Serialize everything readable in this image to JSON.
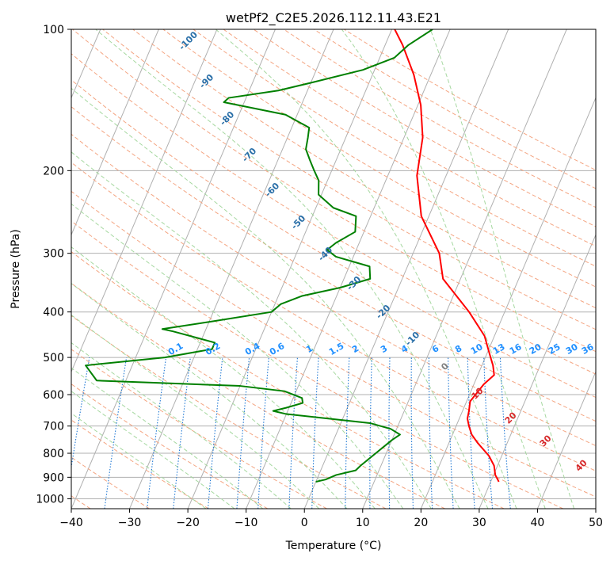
{
  "chart_data": {
    "type": "line",
    "title": "wetPf2_C2E5.2026.112.11.43.E21",
    "xlabel": "Temperature (°C)",
    "ylabel": "Pressure (hPa)",
    "xlim": [
      -40,
      50
    ],
    "ylim": [
      1050,
      100
    ],
    "y_scale": "log",
    "x_ticks": [
      "−40",
      "−30",
      "−20",
      "−10",
      "0",
      "10",
      "20",
      "30",
      "40",
      "50"
    ],
    "x_tick_values": [
      -40,
      -30,
      -20,
      -10,
      0,
      10,
      20,
      30,
      40,
      50
    ],
    "y_ticks": [
      "100",
      "200",
      "300",
      "400",
      "500",
      "600",
      "700",
      "800",
      "900",
      "1000"
    ],
    "y_tick_values": [
      100,
      200,
      300,
      400,
      500,
      600,
      700,
      800,
      900,
      1000
    ],
    "grid": true,
    "series": [
      {
        "role": "temperature",
        "color": "#ff0000",
        "points": [
          [
            31.4,
            920
          ],
          [
            30.3,
            890
          ],
          [
            29.4,
            850
          ],
          [
            27.8,
            810
          ],
          [
            24.9,
            760
          ],
          [
            23.3,
            730
          ],
          [
            22.2,
            700
          ],
          [
            21.4,
            675
          ],
          [
            21.1,
            650
          ],
          [
            20.6,
            620
          ],
          [
            21.7,
            570
          ],
          [
            22.8,
            545
          ],
          [
            21.9,
            520
          ],
          [
            20.4,
            490
          ],
          [
            18.3,
            450
          ],
          [
            13.9,
            400
          ],
          [
            7.0,
            340
          ],
          [
            4.5,
            300
          ],
          [
            -1.3,
            250
          ],
          [
            -5.0,
            205
          ],
          [
            -6.8,
            170
          ],
          [
            -9.5,
            145
          ],
          [
            -12.9,
            125
          ],
          [
            -17.0,
            108
          ],
          [
            -19.5,
            100
          ]
        ]
      },
      {
        "role": "dewpoint",
        "color": "#008000",
        "points": [
          [
            0.0,
            920
          ],
          [
            1.5,
            910
          ],
          [
            3.0,
            890
          ],
          [
            6.0,
            870
          ],
          [
            6.5,
            850
          ],
          [
            10.0,
            750
          ],
          [
            11.0,
            730
          ],
          [
            9.0,
            710
          ],
          [
            5.0,
            690
          ],
          [
            -10.0,
            660
          ],
          [
            -12.5,
            650
          ],
          [
            -10.5,
            640
          ],
          [
            -8.0,
            625
          ],
          [
            -8.5,
            610
          ],
          [
            -12.0,
            590
          ],
          [
            -20.0,
            575
          ],
          [
            -45.0,
            560
          ],
          [
            -48.0,
            520
          ],
          [
            -35.0,
            500
          ],
          [
            -27.5,
            480
          ],
          [
            -27.5,
            465
          ],
          [
            -35.5,
            440
          ],
          [
            -37.5,
            435
          ],
          [
            -30.0,
            420
          ],
          [
            -20.0,
            400
          ],
          [
            -19.0,
            385
          ],
          [
            -16.0,
            370
          ],
          [
            -10.0,
            355
          ],
          [
            -5.5,
            340
          ],
          [
            -6.5,
            320
          ],
          [
            -13.0,
            305
          ],
          [
            -15.0,
            295
          ],
          [
            -14.0,
            285
          ],
          [
            -11.5,
            270
          ],
          [
            -12.5,
            250
          ],
          [
            -17.0,
            240
          ],
          [
            -20.5,
            225
          ],
          [
            -21.5,
            210
          ],
          [
            -23.0,
            200
          ],
          [
            -24.5,
            190
          ],
          [
            -26.0,
            180
          ],
          [
            -26.5,
            170
          ],
          [
            -27.0,
            162
          ],
          [
            -32.0,
            152
          ],
          [
            -43.5,
            143
          ],
          [
            -43.0,
            140
          ],
          [
            -35.0,
            135
          ],
          [
            -30.0,
            130
          ],
          [
            -22.0,
            122
          ],
          [
            -17.5,
            115
          ],
          [
            -16.0,
            108
          ],
          [
            -13.0,
            100
          ]
        ]
      }
    ],
    "dry_adiabat_labels": [
      "-100",
      "-90",
      "-80",
      "-70",
      "-60",
      "-50",
      "-40",
      "-30",
      "-20",
      "-10",
      "0"
    ],
    "dry_adiabat_values_C": [
      -100,
      -90,
      -80,
      -70,
      -60,
      -50,
      -40,
      -30,
      -20,
      -10,
      0
    ],
    "moist_adiabat_labels": [
      "10",
      "20",
      "30",
      "40"
    ],
    "moist_adiabat_values_C": [
      10,
      20,
      30,
      40
    ],
    "mixing_ratio_labels": [
      "0.1",
      "0.2",
      "0.4",
      "0.6",
      "1",
      "1.5",
      "2",
      "3",
      "4",
      "6",
      "8",
      "10",
      "13",
      "16",
      "20",
      "25",
      "30",
      "36"
    ],
    "mixing_ratio_values": [
      0.1,
      0.2,
      0.4,
      0.6,
      1,
      1.5,
      2,
      3,
      4,
      6,
      8,
      10,
      13,
      16,
      20,
      25,
      30,
      36
    ],
    "colors": {
      "temperature": "#ff0000",
      "dewpoint": "#008000",
      "isotherm": "#b0b0b0",
      "dry_adiabat": "#f4a582",
      "moist_adiabat": "#a6d8a0",
      "mixing_ratio": "#1f78d4",
      "dry_label": "#2a6fa8",
      "moist_label": "#d62728",
      "mixing_label": "#1f8fff"
    }
  }
}
